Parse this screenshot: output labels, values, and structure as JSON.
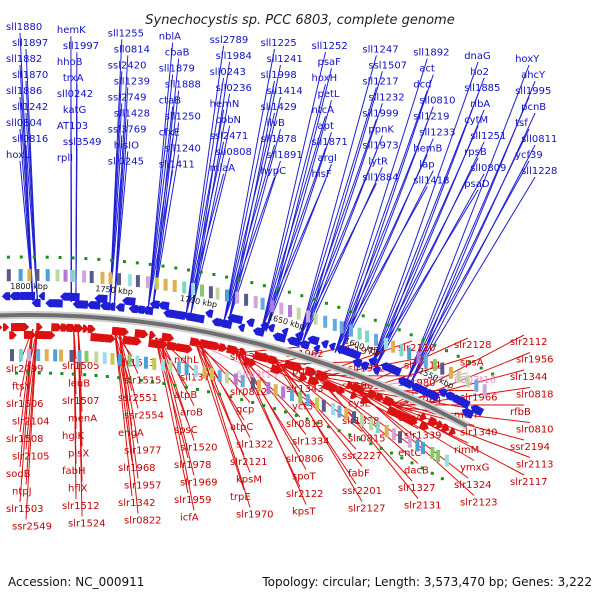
{
  "title": "Synechocystis sp. PCC 6803, complete genome",
  "footer": {
    "accession": "Accession: NC_000911",
    "summary": "Topology: circular; Length: 3,573,470 bp; Genes: 3,222"
  },
  "colors": {
    "forward_strand": "#1f1fd6",
    "reverse_strand": "#dd1111",
    "pink_label": "#e796c8",
    "backbone": "#6e6e6e",
    "tick_green": "#1a8f1a"
  },
  "scale_labels": [
    "1800 kbp",
    "1750 kbp",
    "1700 kbp",
    "1650 kbp",
    "1600 kbp",
    "1550 kbp"
  ],
  "top_genes": [
    "sll1880",
    "sll1897",
    "sll1882",
    "sll1870",
    "sll1886",
    "sll1242",
    "sll0804",
    "sll0816",
    "hoxU",
    "hemK",
    "sll1997",
    "hhoB",
    "trxA",
    "sll0242",
    "katG",
    "AT103",
    "ssl3549",
    "rplI",
    "sll1255",
    "sll0814",
    "ssl2420",
    "sll1239",
    "ssl2749",
    "sll1428",
    "ssl3769",
    "hisIO",
    "sll0245",
    "nblA",
    "cbaB",
    "sll1879",
    "sll1888",
    "ctaB",
    "sll1250",
    "cfxE",
    "sll1240",
    "sll1411",
    "ssl2789",
    "sll1984",
    "sll0243",
    "sll0236",
    "hemN",
    "cobN",
    "ssl2471",
    "sll0808",
    "miaA",
    "sll1225",
    "sll1241",
    "sll1998",
    "sll1414",
    "sll1429",
    "ilvB",
    "sll1878",
    "sll1891",
    "hypC",
    "sll1252",
    "psaF",
    "hoxH",
    "petL",
    "ntcA",
    "apt",
    "sll1871",
    "argI",
    "hisF",
    "sll1247",
    "ssl1507",
    "sll1217",
    "sll1232",
    "sll1999",
    "ppnK",
    "sll1973",
    "lytR",
    "sll1884",
    "sll1892",
    "act",
    "dcd",
    "sll0810",
    "sll1219",
    "sll1233",
    "hemB",
    "lap",
    "sll1418",
    "dnaG",
    "ho2",
    "sll1885",
    "ribA",
    "cytM",
    "sll1251",
    "rpsB",
    "sll0809",
    "psaD",
    "hoxY",
    "ahcY",
    "sll1995",
    "pcnB",
    "tsf",
    "sll0811",
    "ycf39",
    "sll1228"
  ],
  "bottom_genes": [
    "slr2099",
    "ftsY",
    "slr1506",
    "slr2104",
    "slr1508",
    "slr2105",
    "sodB",
    "ntpJ",
    "slr1503",
    "ssr2549",
    "slr1505",
    "leuB",
    "slr1507",
    "menA",
    "hglK",
    "plsX",
    "fabH",
    "hflX",
    "slr1512",
    "slr1524",
    "slr1513",
    "slr1515",
    "ssr2551",
    "ssr2554",
    "engA",
    "slr1977",
    "slr1968",
    "slr1957",
    "slr1342",
    "slr0822",
    "ndhL",
    "sll1375",
    "atpB",
    "aroB",
    "spsC",
    "slr1520",
    "slr1978",
    "slr1969",
    "slr1959",
    "icfA",
    "slr1336",
    "6803t13",
    "slr0812",
    "gcp",
    "atpC",
    "slr1322",
    "slr2121",
    "kpsM",
    "trpE",
    "slr1970",
    "slr1962",
    "pgi",
    "slr1343",
    "ycf3",
    "slr0813",
    "slr1334",
    "slr0806",
    "spoT",
    "slr2122",
    "kpsT",
    "slr1975",
    "slr1972",
    "slr1963",
    "cysE",
    "slr1338",
    "slr0815",
    "ssr2227",
    "fabF",
    "ssr2201",
    "slr2127",
    "slr2110",
    "slr2111",
    "slr1980",
    "slr1964",
    "desA",
    "slr1339",
    "entC",
    "dacB",
    "slr1327",
    "slr2131",
    "slr2128",
    "spsA",
    "6803t16",
    "slr1966",
    "murF",
    "slr1340",
    "rimM",
    "ymxG",
    "slr1324",
    "slr2123",
    "slr2112",
    "slr1956",
    "slr1344",
    "slr0818",
    "rfbB",
    "slr0810",
    "ssr2194",
    "slr2113",
    "slr2117"
  ]
}
